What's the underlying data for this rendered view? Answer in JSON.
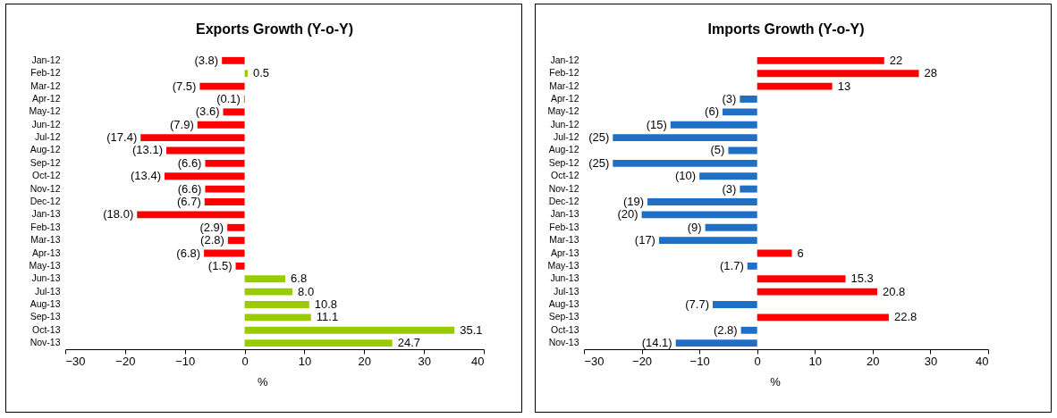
{
  "chart_data": [
    {
      "type": "bar",
      "orientation": "horizontal",
      "title": "Exports Growth (Y-o-Y)",
      "xlabel": "%",
      "categories": [
        "Jan-12",
        "Feb-12",
        "Mar-12",
        "Apr-12",
        "May-12",
        "Jun-12",
        "Jul-12",
        "Aug-12",
        "Sep-12",
        "Oct-12",
        "Nov-12",
        "Dec-12",
        "Jan-13",
        "Feb-13",
        "Mar-13",
        "Apr-13",
        "May-13",
        "Jun-13",
        "Jul-13",
        "Aug-13",
        "Sep-13",
        "Oct-13",
        "Nov-13"
      ],
      "values": [
        -3.8,
        0.5,
        -7.5,
        -0.1,
        -3.6,
        -7.9,
        -17.4,
        -13.1,
        -6.6,
        -13.4,
        -6.6,
        -6.7,
        -18.0,
        -2.9,
        -2.8,
        -6.8,
        -1.5,
        6.8,
        8.0,
        10.8,
        11.1,
        35.1,
        24.7
      ],
      "value_labels": [
        "(3.8)",
        "0.5",
        "(7.5)",
        "(0.1)",
        "(3.6)",
        "(7.9)",
        "(17.4)",
        "(13.1)",
        "(6.6)",
        "(13.4)",
        "(6.6)",
        "(6.7)",
        "(18.0)",
        "(2.9)",
        "(2.8)",
        "(6.8)",
        "(1.5)",
        "6.8",
        "8.0",
        "10.8",
        "11.1",
        "35.1",
        "24.7"
      ],
      "colors": [
        "#ff0000",
        "#99cc00",
        "#ff0000",
        "#ff0000",
        "#ff0000",
        "#ff0000",
        "#ff0000",
        "#ff0000",
        "#ff0000",
        "#ff0000",
        "#ff0000",
        "#ff0000",
        "#ff0000",
        "#ff0000",
        "#ff0000",
        "#ff0000",
        "#ff0000",
        "#99cc00",
        "#99cc00",
        "#99cc00",
        "#99cc00",
        "#99cc00",
        "#99cc00"
      ],
      "xlim": [
        -30,
        40
      ],
      "xticks": [
        -30,
        -20,
        -10,
        0,
        10,
        20,
        30,
        40
      ],
      "grid": false
    },
    {
      "type": "bar",
      "orientation": "horizontal",
      "title": "Imports Growth (Y-o-Y)",
      "xlabel": "%",
      "categories": [
        "Jan-12",
        "Feb-12",
        "Mar-12",
        "Apr-12",
        "May-12",
        "Jun-12",
        "Jul-12",
        "Aug-12",
        "Sep-12",
        "Oct-12",
        "Nov-12",
        "Dec-12",
        "Jan-13",
        "Feb-13",
        "Mar-13",
        "Apr-13",
        "May-13",
        "Jun-13",
        "Jul-13",
        "Aug-13",
        "Sep-13",
        "Oct-13",
        "Nov-13"
      ],
      "values": [
        22,
        28,
        13,
        -3,
        -6,
        -15,
        -25,
        -5,
        -25,
        -10,
        -3,
        -19,
        -20,
        -9,
        -17,
        6,
        -1.7,
        15.3,
        20.8,
        -7.7,
        22.8,
        -2.8,
        -14.1
      ],
      "value_labels": [
        "22",
        "28",
        "13",
        "(3)",
        "(6)",
        "(15)",
        "(25)",
        "(5)",
        "(25)",
        "(10)",
        "(3)",
        "(19)",
        "(20)",
        "(9)",
        "(17)",
        "6",
        "(1.7)",
        "15.3",
        "20.8",
        "(7.7)",
        "22.8",
        "(2.8)",
        "(14.1)"
      ],
      "colors": [
        "#ff0000",
        "#ff0000",
        "#ff0000",
        "#1f6fc5",
        "#1f6fc5",
        "#1f6fc5",
        "#1f6fc5",
        "#1f6fc5",
        "#1f6fc5",
        "#1f6fc5",
        "#1f6fc5",
        "#1f6fc5",
        "#1f6fc5",
        "#1f6fc5",
        "#1f6fc5",
        "#ff0000",
        "#1f6fc5",
        "#ff0000",
        "#ff0000",
        "#1f6fc5",
        "#ff0000",
        "#1f6fc5",
        "#1f6fc5"
      ],
      "xlim": [
        -30,
        40
      ],
      "xticks": [
        -30,
        -20,
        -10,
        0,
        10,
        20,
        30,
        40
      ],
      "grid": false
    }
  ]
}
